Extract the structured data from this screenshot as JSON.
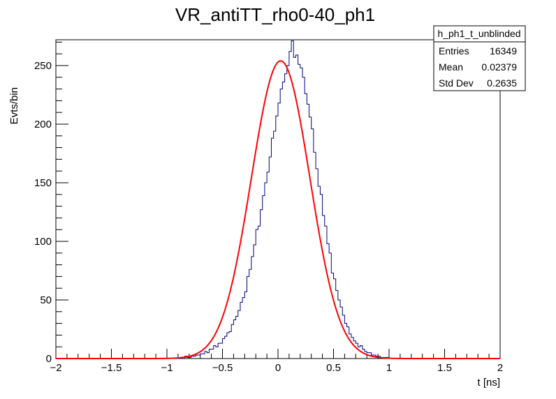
{
  "chart_data": {
    "type": "histogram",
    "title": "VR_antiTT_rho0-40_ph1",
    "xlabel": "t [ns]",
    "ylabel": "Evts/bin",
    "xlim": [
      -2,
      2
    ],
    "ylim": [
      0,
      272
    ],
    "x_ticks": [
      "−2",
      "−1.5",
      "−1",
      "−0.5",
      "0",
      "0.5",
      "1",
      "1.5",
      "2"
    ],
    "y_ticks": [
      "0",
      "50",
      "100",
      "150",
      "200",
      "250"
    ],
    "x_tick_values": [
      -2,
      -1.5,
      -1,
      -0.5,
      0,
      0.5,
      1,
      1.5,
      2
    ],
    "y_tick_values": [
      0,
      50,
      100,
      150,
      200,
      250
    ],
    "grid": false,
    "histogram": {
      "bin_width": 0.02,
      "line_color": "#000080",
      "x_start": -1.0,
      "counts": [
        0,
        0,
        0,
        0,
        0,
        0,
        1,
        0,
        2,
        1,
        1,
        2,
        2,
        3,
        3,
        4,
        4,
        6,
        5,
        8,
        8,
        11,
        10,
        13,
        13,
        17,
        19,
        22,
        23,
        29,
        33,
        36,
        41,
        48,
        52,
        57,
        70,
        76,
        87,
        97,
        110,
        113,
        127,
        139,
        150,
        159,
        172,
        188,
        194,
        207,
        218,
        230,
        236,
        243,
        250,
        262,
        271,
        257,
        259,
        251,
        248,
        240,
        226,
        217,
        206,
        196,
        176,
        162,
        147,
        140,
        122,
        113,
        98,
        90,
        73,
        68,
        58,
        50,
        44,
        37,
        30,
        27,
        21,
        18,
        15,
        13,
        10,
        11,
        8,
        6,
        5,
        5,
        3,
        3,
        2,
        2,
        1,
        1,
        1,
        1
      ]
    },
    "fit": {
      "color": "#ff0000",
      "type": "gaussian",
      "amplitude": 254,
      "mean": 0.02379,
      "sigma": 0.2635
    },
    "stats_box": {
      "title": "h_ph1_t_unblinded",
      "rows": [
        {
          "label": "Entries",
          "value": "16349"
        },
        {
          "label": "Mean",
          "value": "0.02379"
        },
        {
          "label": "Std Dev",
          "value": "0.2635"
        }
      ],
      "placement": "top-right"
    }
  }
}
